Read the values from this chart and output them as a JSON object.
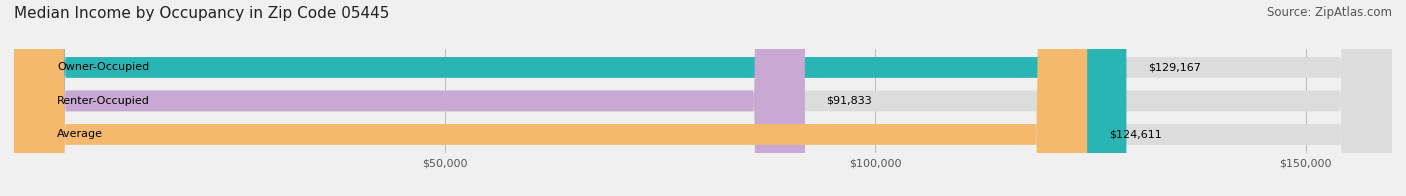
{
  "title": "Median Income by Occupancy in Zip Code 05445",
  "source": "Source: ZipAtlas.com",
  "categories": [
    "Owner-Occupied",
    "Renter-Occupied",
    "Average"
  ],
  "values": [
    129167,
    91833,
    124611
  ],
  "labels": [
    "$129,167",
    "$91,833",
    "$124,611"
  ],
  "bar_colors": [
    "#2ab5b5",
    "#c9a8d4",
    "#f5b96e"
  ],
  "background_color": "#f0f0f0",
  "bar_bg_color": "#dcdcdc",
  "xlim": [
    0,
    160000
  ],
  "xticks": [
    50000,
    100000,
    150000
  ],
  "xticklabels": [
    "$50,000",
    "$100,000",
    "$150,000"
  ],
  "title_fontsize": 11,
  "source_fontsize": 8.5,
  "label_fontsize": 8,
  "category_fontsize": 8,
  "tick_fontsize": 8
}
